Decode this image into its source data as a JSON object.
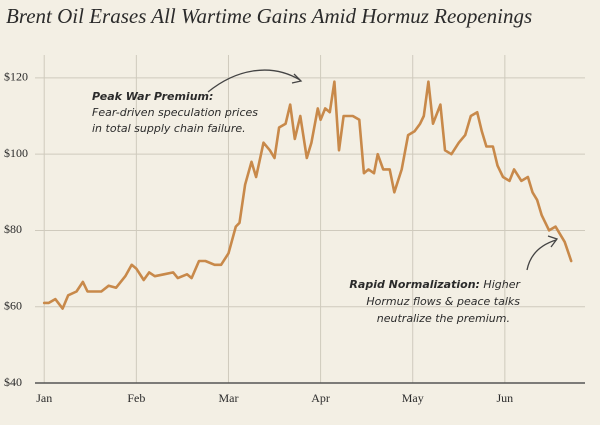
{
  "chart_data": {
    "type": "line",
    "title": "Brent Oil Erases All Wartime Gains Amid Hormuz Reopenings",
    "x": [
      0,
      0.05,
      0.12,
      0.2,
      0.26,
      0.35,
      0.42,
      0.47,
      0.55,
      0.62,
      0.7,
      0.78,
      0.88,
      0.95,
      1.0,
      1.08,
      1.14,
      1.2,
      1.3,
      1.4,
      1.45,
      1.55,
      1.6,
      1.68,
      1.75,
      1.85,
      1.92,
      2.0,
      2.08,
      2.12,
      2.18,
      2.25,
      2.3,
      2.38,
      2.45,
      2.5,
      2.55,
      2.62,
      2.67,
      2.72,
      2.78,
      2.85,
      2.9,
      2.97,
      3.0,
      3.05,
      3.1,
      3.15,
      3.2,
      3.25,
      3.35,
      3.42,
      3.47,
      3.52,
      3.58,
      3.62,
      3.68,
      3.75,
      3.8,
      3.88,
      3.95,
      4.02,
      4.08,
      4.12,
      4.17,
      4.22,
      4.3,
      4.35,
      4.42,
      4.5,
      4.57,
      4.63,
      4.7,
      4.75,
      4.8,
      4.87,
      4.92,
      4.98,
      5.05,
      5.1,
      5.18,
      5.25,
      5.3,
      5.35,
      5.4,
      5.48,
      5.55,
      5.65,
      5.72
    ],
    "values": [
      61,
      61,
      62,
      59.5,
      63,
      64,
      66.5,
      64,
      64,
      64,
      65.5,
      65,
      68,
      71,
      70,
      67,
      69,
      68,
      68.5,
      69,
      67.5,
      68.5,
      67.5,
      72,
      72,
      71,
      71,
      74,
      81,
      82,
      92,
      98,
      94,
      103,
      101,
      99,
      107,
      108,
      113,
      104,
      110,
      99,
      103,
      112,
      109,
      112,
      111,
      119,
      101,
      110,
      110,
      109,
      95,
      96,
      95,
      100,
      96,
      96,
      90,
      96,
      105,
      106,
      108,
      110,
      119,
      108,
      113,
      101,
      100,
      103,
      105,
      110,
      111,
      106,
      102,
      102,
      97,
      94,
      93,
      96,
      93,
      94,
      90,
      88,
      84,
      80,
      81,
      77,
      72
    ],
    "color": "#c8894a",
    "xlim": [
      -0.1,
      5.87
    ],
    "xticks": [
      {
        "value": 0,
        "label": "Jan"
      },
      {
        "value": 1,
        "label": "Feb"
      },
      {
        "value": 2,
        "label": "Mar"
      },
      {
        "value": 3,
        "label": "Apr"
      },
      {
        "value": 4,
        "label": "May"
      },
      {
        "value": 5,
        "label": "Jun"
      }
    ],
    "ylim": [
      40,
      126
    ],
    "yticks": [
      {
        "value": 40,
        "label": "$40"
      },
      {
        "value": 60,
        "label": "$60"
      },
      {
        "value": 80,
        "label": "$80"
      },
      {
        "value": 100,
        "label": "$100"
      },
      {
        "value": 120,
        "label": "$120"
      }
    ],
    "grid": true,
    "annotations": [
      {
        "title": "Peak War Premium:",
        "lines": [
          "Fear-driven speculation prices",
          "in total supply chain failure."
        ]
      },
      {
        "title": "Rapid Normalization:",
        "lines": [
          "Higher",
          "Hormuz flows & peace talks",
          "neutralize the premium."
        ]
      }
    ]
  }
}
